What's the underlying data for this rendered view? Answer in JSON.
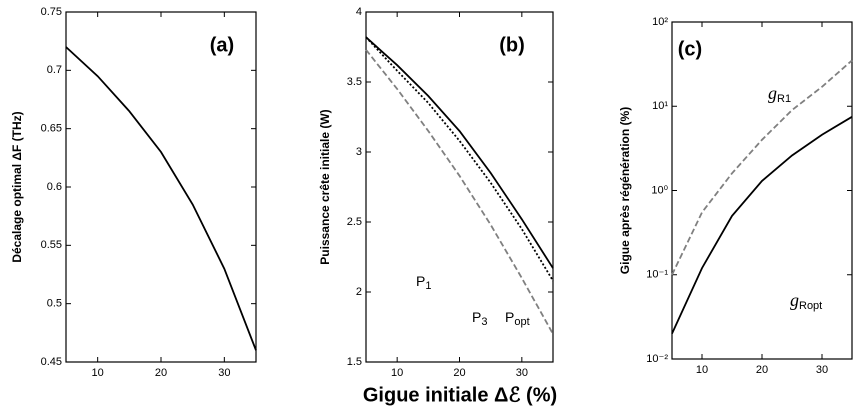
{
  "figure": {
    "xlabel": "Gigue initiale Δℰ (%)"
  },
  "chart_data": [
    {
      "type": "line",
      "panel_label": "(a)",
      "ylabel": "Décalage optimal ΔF (THz)",
      "x": [
        5,
        10,
        15,
        20,
        25,
        30,
        35
      ],
      "series": [
        {
          "name": null,
          "color": "#000000",
          "style": "solid",
          "values": [
            0.72,
            0.695,
            0.665,
            0.63,
            0.585,
            0.53,
            0.46
          ]
        }
      ],
      "xlim": [
        5,
        35
      ],
      "xticks": [
        10,
        20,
        30
      ],
      "ylim": [
        0.45,
        0.75
      ],
      "yticks": [
        0.45,
        0.5,
        0.55,
        0.6,
        0.65,
        0.7,
        0.75
      ]
    },
    {
      "type": "line",
      "panel_label": "(b)",
      "ylabel": "Puissance crête initiale (W)",
      "x": [
        5,
        10,
        15,
        20,
        25,
        30,
        35
      ],
      "series": [
        {
          "name": "P1",
          "color": "#808080",
          "style": "dashed",
          "values": [
            3.73,
            3.45,
            3.15,
            2.83,
            2.48,
            2.1,
            1.7
          ]
        },
        {
          "name": "P3",
          "color": "#000000",
          "style": "dotted",
          "values": [
            3.82,
            3.58,
            3.35,
            3.08,
            2.78,
            2.45,
            2.08
          ]
        },
        {
          "name": "Popt",
          "color": "#000000",
          "style": "solid",
          "values": [
            3.82,
            3.62,
            3.4,
            3.15,
            2.85,
            2.52,
            2.17
          ]
        }
      ],
      "xlim": [
        5,
        35
      ],
      "xticks": [
        10,
        20,
        30
      ],
      "ylim": [
        1.5,
        4
      ],
      "yticks": [
        1.5,
        2,
        2.5,
        3,
        3.5,
        4
      ]
    },
    {
      "type": "line",
      "panel_label": "(c)",
      "ylabel": "Gigue  après régénération (%)",
      "log_y": true,
      "x": [
        5,
        10,
        15,
        20,
        25,
        30,
        35
      ],
      "series": [
        {
          "name": "gR1",
          "color": "#808080",
          "style": "dashed",
          "values": [
            0.1,
            0.55,
            1.6,
            4,
            9,
            17,
            35
          ]
        },
        {
          "name": "gRopt",
          "color": "#000000",
          "style": "solid",
          "values": [
            0.02,
            0.12,
            0.5,
            1.3,
            2.6,
            4.6,
            7.5
          ]
        }
      ],
      "xlim": [
        5,
        35
      ],
      "xticks": [
        10,
        20,
        30
      ],
      "ylim": [
        0.01,
        100
      ],
      "yticks": [
        {
          "value": 0.01,
          "label": "10⁻²"
        },
        {
          "value": 0.1,
          "label": "10⁻¹"
        },
        {
          "value": 1,
          "label": "10⁰"
        },
        {
          "value": 10,
          "label": "10¹"
        },
        {
          "value": 100,
          "label": "10²"
        }
      ]
    }
  ]
}
